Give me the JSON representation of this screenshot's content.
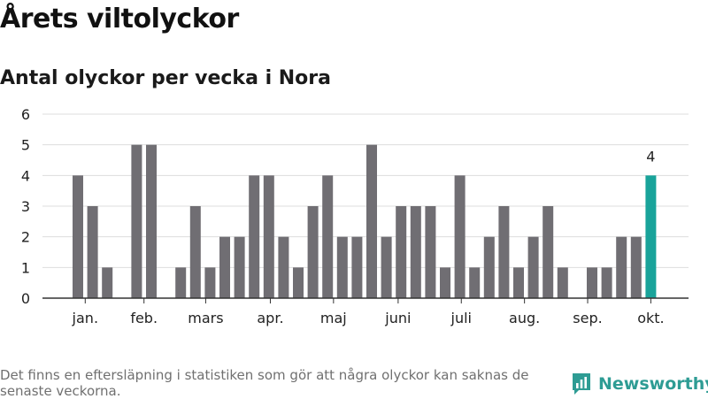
{
  "title": "Årets viltolyckor",
  "subtitle": "Antal olyckor per vecka i Nora",
  "footnote": "Det finns en eftersläpning i statistiken som gör att några olyckor kan saknas de senaste veckorna.",
  "brand": {
    "name": "Newsworthy",
    "icon": "bar-chart-logo-icon",
    "color": "#2e9c94"
  },
  "colors": {
    "bar": "#706e73",
    "highlight": "#19a39a",
    "grid": "#dddddd",
    "axis": "#333333"
  },
  "chart_data": {
    "type": "bar",
    "values": [
      4,
      3,
      1,
      0,
      5,
      5,
      0,
      1,
      3,
      1,
      2,
      2,
      4,
      4,
      2,
      1,
      3,
      4,
      2,
      2,
      5,
      2,
      3,
      3,
      3,
      1,
      4,
      1,
      2,
      3,
      1,
      2,
      3,
      1,
      0,
      1,
      1,
      2,
      2,
      4
    ],
    "highlight_index": 39,
    "data_labels": [
      {
        "index": 39,
        "text": "4"
      }
    ],
    "month_labels": [
      {
        "label": "jan.",
        "at": 0.5
      },
      {
        "label": "feb.",
        "at": 4.5
      },
      {
        "label": "mars",
        "at": 8.7
      },
      {
        "label": "apr.",
        "at": 13.1
      },
      {
        "label": "maj",
        "at": 17.4
      },
      {
        "label": "juni",
        "at": 21.8
      },
      {
        "label": "juli",
        "at": 26.1
      },
      {
        "label": "aug.",
        "at": 30.4
      },
      {
        "label": "sep.",
        "at": 34.7
      },
      {
        "label": "okt.",
        "at": 39
      }
    ],
    "yticks": [
      0,
      1,
      2,
      3,
      4,
      5,
      6
    ],
    "ylim": [
      0,
      6
    ],
    "grid": true
  }
}
